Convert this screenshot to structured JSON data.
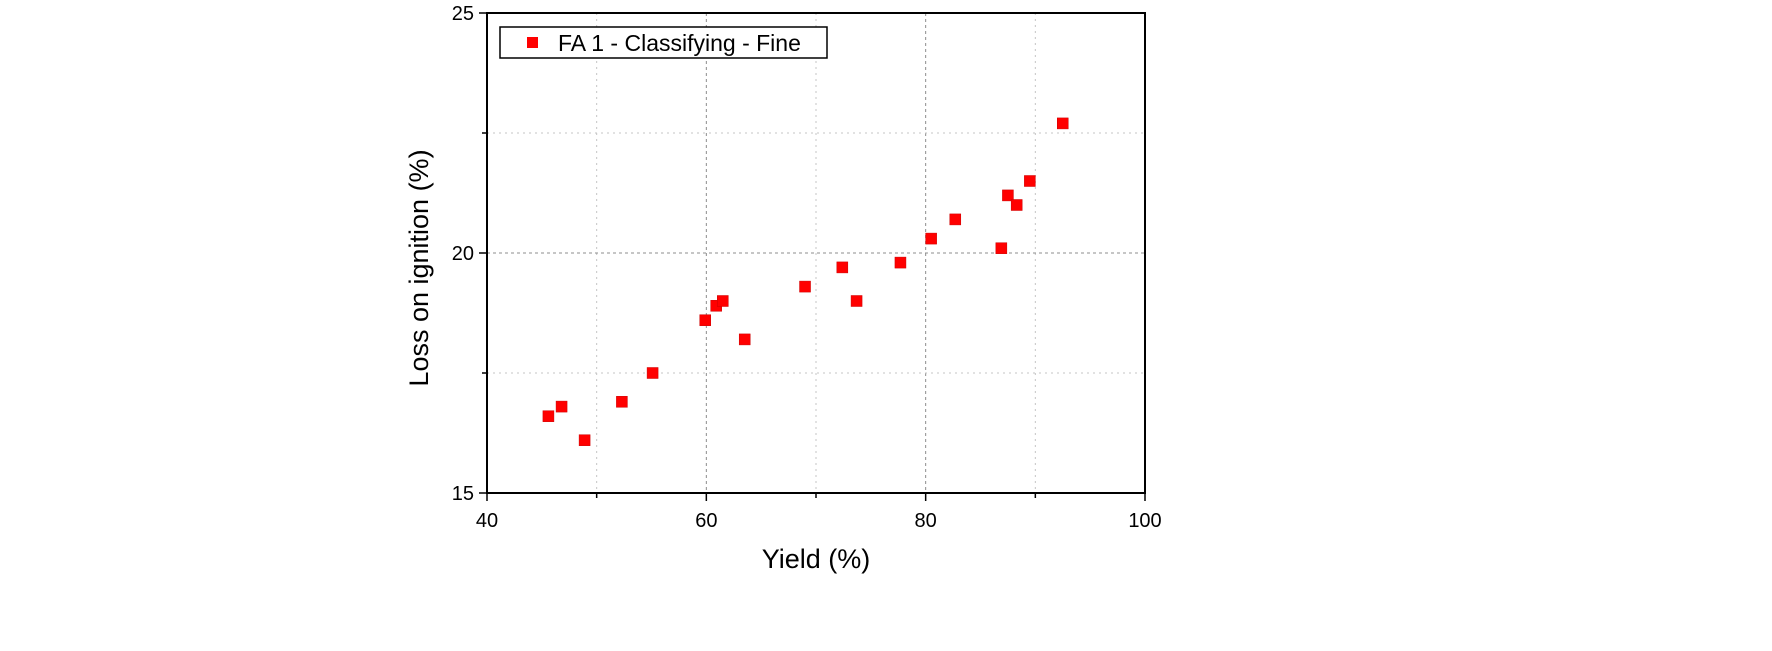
{
  "chart_data": {
    "type": "scatter",
    "title": "",
    "xlabel": "Yield (%)",
    "ylabel": "Loss on ignition (%)",
    "xlim": [
      40,
      100
    ],
    "ylim": [
      15,
      25
    ],
    "xticks": [
      40,
      60,
      80,
      100
    ],
    "yticks": [
      15,
      20,
      25
    ],
    "x_minor_ticks": [
      50,
      70,
      90
    ],
    "y_minor_ticks": [
      17.5,
      22.5
    ],
    "grid": true,
    "legend_position": "top-left",
    "series": [
      {
        "name": "FA 1 - Classifying - Fine",
        "color": "#ff0000",
        "marker": "square",
        "points": [
          {
            "x": 45.6,
            "y": 16.6
          },
          {
            "x": 46.8,
            "y": 16.8
          },
          {
            "x": 48.9,
            "y": 16.1
          },
          {
            "x": 52.3,
            "y": 16.9
          },
          {
            "x": 55.1,
            "y": 17.5
          },
          {
            "x": 59.9,
            "y": 18.6
          },
          {
            "x": 60.9,
            "y": 18.9
          },
          {
            "x": 61.5,
            "y": 19.0
          },
          {
            "x": 63.5,
            "y": 18.2
          },
          {
            "x": 69.0,
            "y": 19.3
          },
          {
            "x": 72.4,
            "y": 19.7
          },
          {
            "x": 73.7,
            "y": 19.0
          },
          {
            "x": 77.7,
            "y": 19.8
          },
          {
            "x": 80.5,
            "y": 20.3
          },
          {
            "x": 82.7,
            "y": 20.7
          },
          {
            "x": 86.9,
            "y": 20.1
          },
          {
            "x": 87.5,
            "y": 21.2
          },
          {
            "x": 88.3,
            "y": 21.0
          },
          {
            "x": 89.5,
            "y": 21.5
          },
          {
            "x": 92.5,
            "y": 22.7
          }
        ]
      }
    ]
  }
}
